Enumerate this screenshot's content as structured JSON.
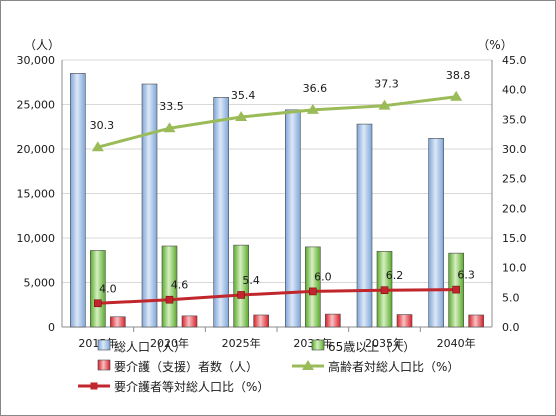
{
  "chart_data": {
    "type": "bar",
    "title": "",
    "categories": [
      "2015年",
      "2020年",
      "2025年",
      "2030年",
      "2035年",
      "2040年"
    ],
    "bar_series": [
      {
        "name": "総人口（人）",
        "values": [
          28500,
          27300,
          25800,
          24400,
          22800,
          21200
        ],
        "color": "#8db3e2"
      },
      {
        "name": "65歳以上（人）",
        "values": [
          8600,
          9100,
          9200,
          9000,
          8500,
          8300
        ],
        "color": "#7fc24e"
      },
      {
        "name": "要介護（支援）者数（人）",
        "values": [
          1150,
          1250,
          1350,
          1450,
          1400,
          1350
        ],
        "color": "#e8434a"
      }
    ],
    "line_series": [
      {
        "name": "高齢者対総人口比（%）",
        "values": [
          30.3,
          33.5,
          35.4,
          36.6,
          37.3,
          38.8
        ],
        "labels": [
          "30.3",
          "33.5",
          "35.4",
          "36.6",
          "37.3",
          "38.8"
        ],
        "color": "#9bbb59",
        "marker": "triangle"
      },
      {
        "name": "要介護者等対総人口比（%）",
        "values": [
          4.0,
          4.6,
          5.4,
          6.0,
          6.2,
          6.3
        ],
        "labels": [
          "4.0",
          "4.6",
          "5.4",
          "6.0",
          "6.2",
          "6.3"
        ],
        "color": "#c0262c",
        "marker": "square"
      }
    ],
    "y_left": {
      "unit_label": "（人）",
      "ylim": [
        0,
        30000
      ],
      "ticks": [
        "0",
        "5,000",
        "10,000",
        "15,000",
        "20,000",
        "25,000",
        "30,000"
      ]
    },
    "y_right": {
      "unit_label": "（%）",
      "ylim": [
        0,
        45
      ],
      "ticks": [
        "0.0",
        "5.0",
        "10.0",
        "15.0",
        "20.0",
        "25.0",
        "30.0",
        "35.0",
        "40.0",
        "45.0"
      ]
    },
    "grid": true,
    "legend": "bottom"
  }
}
